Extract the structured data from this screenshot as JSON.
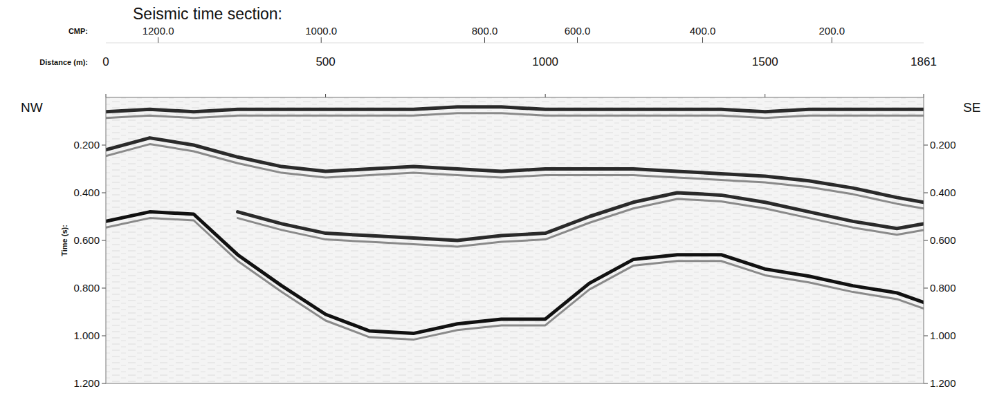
{
  "chart_data": {
    "type": "line",
    "title": "Seismic time section:",
    "x_label": "Distance (m):",
    "y_label": "Time (s):",
    "left_label": "NW",
    "right_label": "SE",
    "cmp_axis": {
      "label": "CMP:",
      "ticks": [
        {
          "value": 119,
          "label": "1200.0"
        },
        {
          "value": 490,
          "label": "1000.0"
        },
        {
          "value": 862,
          "label": "800.0"
        },
        {
          "value": 1073,
          "label": "600.0"
        },
        {
          "value": 1358,
          "label": "400.0"
        },
        {
          "value": 1652,
          "label": "200.0"
        }
      ]
    },
    "x": [
      0,
      100,
      200,
      300,
      400,
      500,
      600,
      700,
      800,
      900,
      1000,
      1100,
      1200,
      1300,
      1400,
      1500,
      1600,
      1700,
      1800,
      1861
    ],
    "xlim": [
      0,
      1861
    ],
    "xticks": [
      0,
      500,
      1000,
      1500,
      1861
    ],
    "ylim": [
      1.2,
      0
    ],
    "yticks": [
      {
        "value": 0.2,
        "label": "0.200"
      },
      {
        "value": 0.4,
        "label": "0.400"
      },
      {
        "value": 0.6,
        "label": "0.600"
      },
      {
        "value": 0.8,
        "label": "0.800"
      },
      {
        "value": 1.0,
        "label": "1.000"
      },
      {
        "value": 1.2,
        "label": "1.200"
      }
    ],
    "grid": false,
    "series": [
      {
        "color": "#2a2a2a",
        "values": [
          0.06,
          0.05,
          0.06,
          0.05,
          0.05,
          0.05,
          0.05,
          0.05,
          0.04,
          0.04,
          0.05,
          0.05,
          0.05,
          0.05,
          0.05,
          0.06,
          0.05,
          0.05,
          0.05,
          0.05
        ]
      },
      {
        "color": "#2a2a2a",
        "values": [
          0.22,
          0.17,
          0.2,
          0.25,
          0.29,
          0.31,
          0.3,
          0.29,
          0.3,
          0.31,
          0.3,
          0.3,
          0.3,
          0.31,
          0.32,
          0.33,
          0.35,
          0.38,
          0.42,
          0.44
        ]
      },
      {
        "color": "#2a2a2a",
        "values": [
          null,
          null,
          null,
          0.48,
          0.53,
          0.57,
          0.58,
          0.59,
          0.6,
          0.58,
          0.57,
          0.5,
          0.44,
          0.4,
          0.41,
          0.44,
          0.48,
          0.52,
          0.55,
          0.53
        ]
      },
      {
        "color": "#111111",
        "values": [
          0.52,
          0.48,
          0.49,
          0.66,
          0.79,
          0.91,
          0.98,
          0.99,
          0.95,
          0.93,
          0.93,
          0.78,
          0.68,
          0.66,
          0.66,
          0.72,
          0.75,
          0.79,
          0.82,
          0.86
        ]
      }
    ]
  }
}
